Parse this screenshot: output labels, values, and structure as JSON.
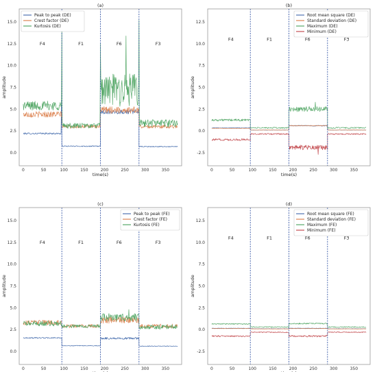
{
  "chart_data": [
    {
      "type": "line",
      "title": "(a)",
      "xlabel": "time(s)",
      "ylabel": "amplitude",
      "xlim": [
        -10,
        390
      ],
      "ylim": [
        -1.5,
        16.5
      ],
      "xticks": [
        0,
        50,
        100,
        150,
        200,
        250,
        300,
        350
      ],
      "yticks": [
        0.0,
        2.5,
        5.0,
        7.5,
        10.0,
        12.5,
        15.0
      ],
      "ytick_labels": [
        "0.0",
        "2.5",
        "5.0",
        "7.5",
        "10.0",
        "12.5",
        "15.0"
      ],
      "legend_position": "top-left",
      "region_labels": [
        {
          "text": "F4",
          "x": 47
        },
        {
          "text": "F1",
          "x": 142
        },
        {
          "text": "F6",
          "x": 236
        },
        {
          "text": "F3",
          "x": 332
        }
      ],
      "region_label_y": 12.5,
      "vlines": [
        95,
        190,
        285
      ],
      "segments": [
        [
          0,
          95
        ],
        [
          95,
          190
        ],
        [
          190,
          285
        ],
        [
          285,
          380
        ]
      ],
      "series": [
        {
          "name": "Peak to peak (DE)",
          "color": "#4c72b0",
          "levels": [
            2.2,
            0.75,
            4.7,
            0.7
          ],
          "noise": [
            0.1,
            0.06,
            0.25,
            0.06
          ],
          "spikes": [
            [
              94,
              6.0
            ]
          ]
        },
        {
          "name": "Crest factor (DE)",
          "color": "#dd8452",
          "levels": [
            4.4,
            3.0,
            4.9,
            3.0
          ],
          "noise": [
            0.35,
            0.2,
            0.4,
            0.2
          ],
          "spikes": []
        },
        {
          "name": "Kurtosis (DE)",
          "color": "#55a868",
          "levels": [
            5.4,
            3.1,
            7.2,
            3.4
          ],
          "noise": [
            0.55,
            0.3,
            1.9,
            0.45
          ],
          "spikes": [
            [
              190,
              12.5
            ],
            [
              253,
              13.4
            ],
            [
              285,
              15.2
            ],
            [
              95,
              14.5
            ]
          ]
        }
      ]
    },
    {
      "type": "line",
      "title": "(b)",
      "xlabel": "time(s)",
      "ylabel": "amplitude",
      "xlim": [
        -10,
        390
      ],
      "ylim": [
        -4,
        14
      ],
      "xticks": [
        0,
        50,
        100,
        150,
        200,
        250,
        300,
        350
      ],
      "yticks": [
        -2.5,
        0.0,
        2.5,
        5.0,
        7.5,
        10.0,
        12.5
      ],
      "ytick_labels": [
        "-2.5",
        "0.0",
        "2.5",
        "5.0",
        "7.5",
        "10.0",
        "12.5"
      ],
      "legend_position": "top-right",
      "region_labels": [
        {
          "text": "F4",
          "x": 47
        },
        {
          "text": "F1",
          "x": 142
        },
        {
          "text": "F6",
          "x": 236
        },
        {
          "text": "F3",
          "x": 332
        }
      ],
      "region_label_y": 10.5,
      "vlines": [
        95,
        190,
        285
      ],
      "segments": [
        [
          0,
          95
        ],
        [
          95,
          190
        ],
        [
          190,
          285
        ],
        [
          285,
          380
        ]
      ],
      "series": [
        {
          "name": "Root mean square (DE)",
          "color": "#4c72b0",
          "levels": [
            0.35,
            0.1,
            0.6,
            0.1
          ],
          "noise": [
            0.03,
            0.02,
            0.05,
            0.02
          ],
          "spikes": []
        },
        {
          "name": "Standard deviation (DE)",
          "color": "#dd8452",
          "levels": [
            0.3,
            0.1,
            0.6,
            0.1
          ],
          "noise": [
            0.02,
            0.02,
            0.04,
            0.02
          ],
          "spikes": []
        },
        {
          "name": "Maximum (DE)",
          "color": "#55a868",
          "levels": [
            1.25,
            0.35,
            2.5,
            0.35
          ],
          "noise": [
            0.12,
            0.08,
            0.3,
            0.08
          ],
          "spikes": [
            [
              255,
              3.3
            ]
          ]
        },
        {
          "name": "Minimum (DE)",
          "color": "#c44e52",
          "levels": [
            -1.0,
            -0.35,
            -1.9,
            -0.35
          ],
          "noise": [
            0.12,
            0.08,
            0.28,
            0.08
          ],
          "spikes": [
            [
              262,
              -2.7
            ]
          ]
        }
      ]
    },
    {
      "type": "line",
      "title": "(c)",
      "xlabel": "time(s)",
      "ylabel": "amplitude",
      "xlim": [
        -10,
        390
      ],
      "ylim": [
        -1.5,
        16.5
      ],
      "xticks": [
        0,
        50,
        100,
        150,
        200,
        250,
        300,
        350
      ],
      "yticks": [
        0.0,
        2.5,
        5.0,
        7.5,
        10.0,
        12.5,
        15.0
      ],
      "ytick_labels": [
        "0.0",
        "2.5",
        "5.0",
        "7.5",
        "10.0",
        "12.5",
        "15.0"
      ],
      "legend_position": "top-right",
      "region_labels": [
        {
          "text": "F4",
          "x": 47
        },
        {
          "text": "F1",
          "x": 142
        },
        {
          "text": "F6",
          "x": 236
        },
        {
          "text": "F3",
          "x": 332
        }
      ],
      "region_label_y": 12.5,
      "vlines": [
        95,
        190,
        285
      ],
      "segments": [
        [
          0,
          95
        ],
        [
          95,
          190
        ],
        [
          190,
          285
        ],
        [
          285,
          380
        ]
      ],
      "series": [
        {
          "name": "Peak to peak (FE)",
          "color": "#4c72b0",
          "levels": [
            1.55,
            0.65,
            1.5,
            0.6
          ],
          "noise": [
            0.07,
            0.04,
            0.12,
            0.04
          ],
          "spikes": []
        },
        {
          "name": "Crest factor (FE)",
          "color": "#dd8452",
          "levels": [
            3.3,
            2.9,
            3.6,
            2.9
          ],
          "noise": [
            0.3,
            0.2,
            0.4,
            0.25
          ],
          "spikes": []
        },
        {
          "name": "Kurtosis (FE)",
          "color": "#55a868",
          "levels": [
            3.2,
            2.9,
            3.9,
            2.8
          ],
          "noise": [
            0.3,
            0.2,
            0.45,
            0.25
          ],
          "spikes": [
            [
              260,
              4.8
            ]
          ]
        }
      ]
    },
    {
      "type": "line",
      "title": "(d)",
      "xlabel": "time(s)",
      "ylabel": "amplitude",
      "xlim": [
        -10,
        390
      ],
      "ylim": [
        -4,
        14
      ],
      "xticks": [
        0,
        50,
        100,
        150,
        200,
        250,
        300,
        350
      ],
      "yticks": [
        -2.5,
        0.0,
        2.5,
        5.0,
        7.5,
        10.0,
        12.5
      ],
      "ytick_labels": [
        "-2.5",
        "0.0",
        "2.5",
        "5.0",
        "7.5",
        "10.0",
        "12.5"
      ],
      "legend_position": "top-right",
      "region_labels": [
        {
          "text": "F4",
          "x": 47
        },
        {
          "text": "F1",
          "x": 142
        },
        {
          "text": "F6",
          "x": 236
        },
        {
          "text": "F3",
          "x": 332
        }
      ],
      "region_label_y": 10.5,
      "vlines": [
        95,
        190,
        285
      ],
      "segments": [
        [
          0,
          95
        ],
        [
          95,
          190
        ],
        [
          190,
          285
        ],
        [
          285,
          380
        ]
      ],
      "series": [
        {
          "name": "Root mean square (FE)",
          "color": "#4c72b0",
          "levels": [
            0.15,
            0.1,
            0.15,
            0.1
          ],
          "noise": [
            0.02,
            0.02,
            0.02,
            0.02
          ],
          "spikes": []
        },
        {
          "name": "Standard deviation (FE)",
          "color": "#dd8452",
          "levels": [
            0.12,
            0.08,
            0.12,
            0.08
          ],
          "noise": [
            0.02,
            0.02,
            0.02,
            0.02
          ],
          "spikes": []
        },
        {
          "name": "Maximum (FE)",
          "color": "#55a868",
          "levels": [
            0.65,
            0.3,
            0.7,
            0.3
          ],
          "noise": [
            0.06,
            0.05,
            0.08,
            0.05
          ],
          "spikes": []
        },
        {
          "name": "Minimum (FE)",
          "color": "#c44e52",
          "levels": [
            -0.75,
            -0.3,
            -0.75,
            -0.3
          ],
          "noise": [
            0.08,
            0.05,
            0.1,
            0.05
          ],
          "spikes": []
        }
      ]
    }
  ]
}
